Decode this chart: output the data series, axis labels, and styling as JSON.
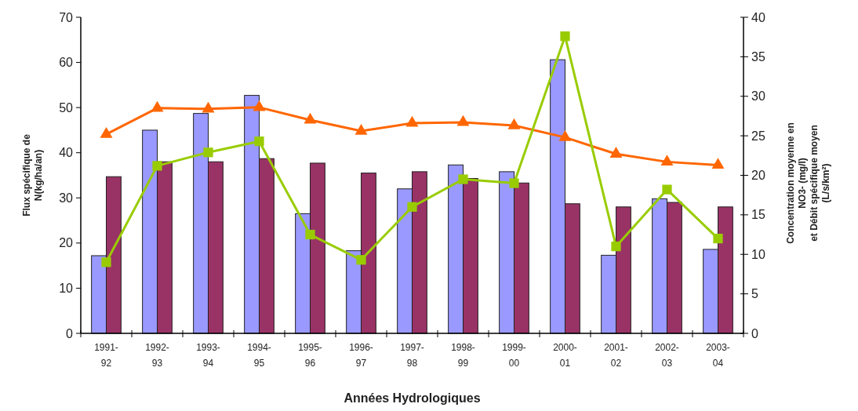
{
  "chart_data": {
    "type": "bar",
    "xlabel": "Années Hydrologiques",
    "ylabel": "Flux spécifique de\nN(kg/ha/an)",
    "y2label": "Concentration moyenne en\nNO3- (mg/l)\net Débit  spécifique moyen\n(L/s/km²)",
    "categories": [
      "1991-\n92",
      "1992-\n93",
      "1993-\n94",
      "1994-\n95",
      "1995-\n96",
      "1996-\n97",
      "1997-\n98",
      "1998-\n99",
      "1999-\n00",
      "2000-\n01",
      "2001-\n02",
      "2002-\n03",
      "2003-\n04"
    ],
    "ylim": [
      0,
      70
    ],
    "yticks": [
      0,
      10,
      20,
      30,
      40,
      50,
      60,
      70
    ],
    "y2lim": [
      0,
      40
    ],
    "y2ticks": [
      0,
      5,
      10,
      15,
      20,
      25,
      30,
      35,
      40
    ],
    "grid": false,
    "series": [
      {
        "color": "#9999ff",
        "values": [
          17.2,
          45,
          48.7,
          52.7,
          26.5,
          18.3,
          32,
          37.3,
          35.8,
          60.6,
          17.3,
          29.8,
          18.6
        ]
      },
      {
        "color": "#993366",
        "values": [
          34.7,
          38,
          38,
          38.7,
          37.7,
          35.5,
          35.8,
          34.3,
          33.3,
          28.7,
          28,
          29,
          28
        ]
      },
      {
        "type": "line",
        "axis": "y2",
        "color": "#ff6600",
        "marker": "triangle",
        "values": [
          25.2,
          28.5,
          28.4,
          28.6,
          27,
          25.6,
          26.6,
          26.7,
          26.3,
          24.8,
          22.7,
          21.7,
          21.3
        ]
      },
      {
        "type": "line",
        "axis": "y2",
        "color": "#99cc00",
        "marker": "square",
        "values": [
          9,
          21.2,
          22.9,
          24.3,
          12.5,
          9.3,
          16,
          19.5,
          19,
          37.6,
          11,
          18.2,
          12
        ]
      }
    ]
  }
}
